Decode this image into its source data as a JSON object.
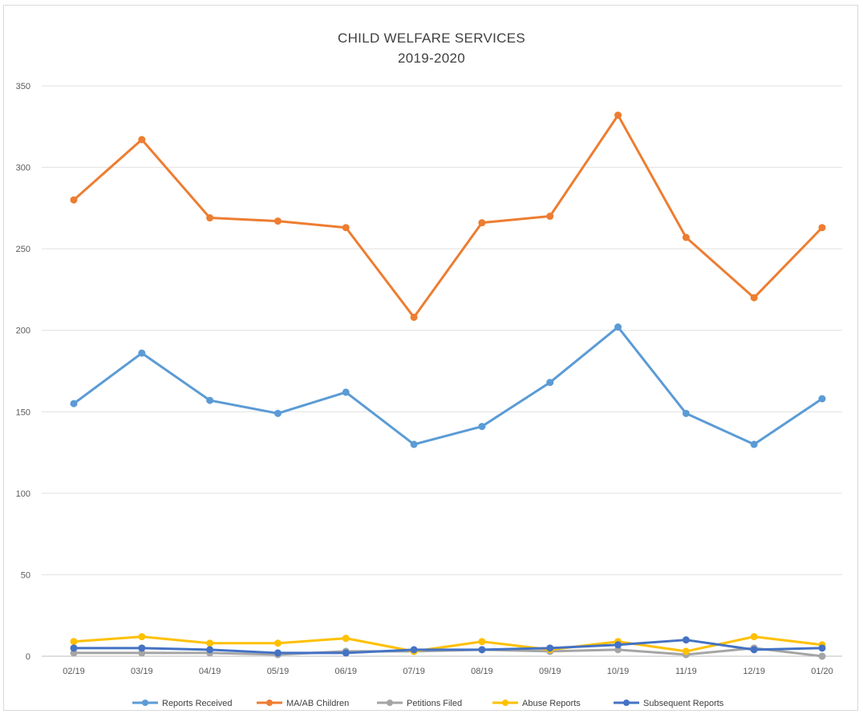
{
  "chart_data": {
    "type": "line",
    "title": "CHILD WELFARE SERVICES",
    "subtitle": "2019-2020",
    "categories": [
      "02/19",
      "03/19",
      "04/19",
      "05/19",
      "06/19",
      "07/19",
      "08/19",
      "09/19",
      "10/19",
      "11/19",
      "12/19",
      "01/20"
    ],
    "ylim": [
      0,
      350
    ],
    "yticks": [
      0,
      50,
      100,
      150,
      200,
      250,
      300,
      350
    ],
    "grid": true,
    "legend_position": "bottom",
    "series": [
      {
        "name": "Reports Received",
        "color": "#5b9bd5",
        "values": [
          155,
          186,
          157,
          149,
          162,
          130,
          141,
          168,
          202,
          149,
          130,
          158
        ]
      },
      {
        "name": "MA/AB Children",
        "color": "#ed7d31",
        "values": [
          280,
          317,
          269,
          267,
          263,
          208,
          266,
          270,
          332,
          257,
          220,
          263
        ]
      },
      {
        "name": "Petitions Filed",
        "color": "#a5a5a5",
        "values": [
          2,
          2,
          2,
          1,
          3,
          3,
          4,
          3,
          4,
          1,
          5,
          0
        ]
      },
      {
        "name": "Abuse Reports",
        "color": "#ffc000",
        "values": [
          9,
          12,
          8,
          8,
          11,
          3,
          9,
          4,
          9,
          3,
          12,
          7
        ]
      },
      {
        "name": "Subsequent Reports",
        "color": "#4472c4",
        "values": [
          5,
          5,
          4,
          2,
          2,
          4,
          4,
          5,
          7,
          10,
          4,
          5
        ]
      }
    ]
  }
}
